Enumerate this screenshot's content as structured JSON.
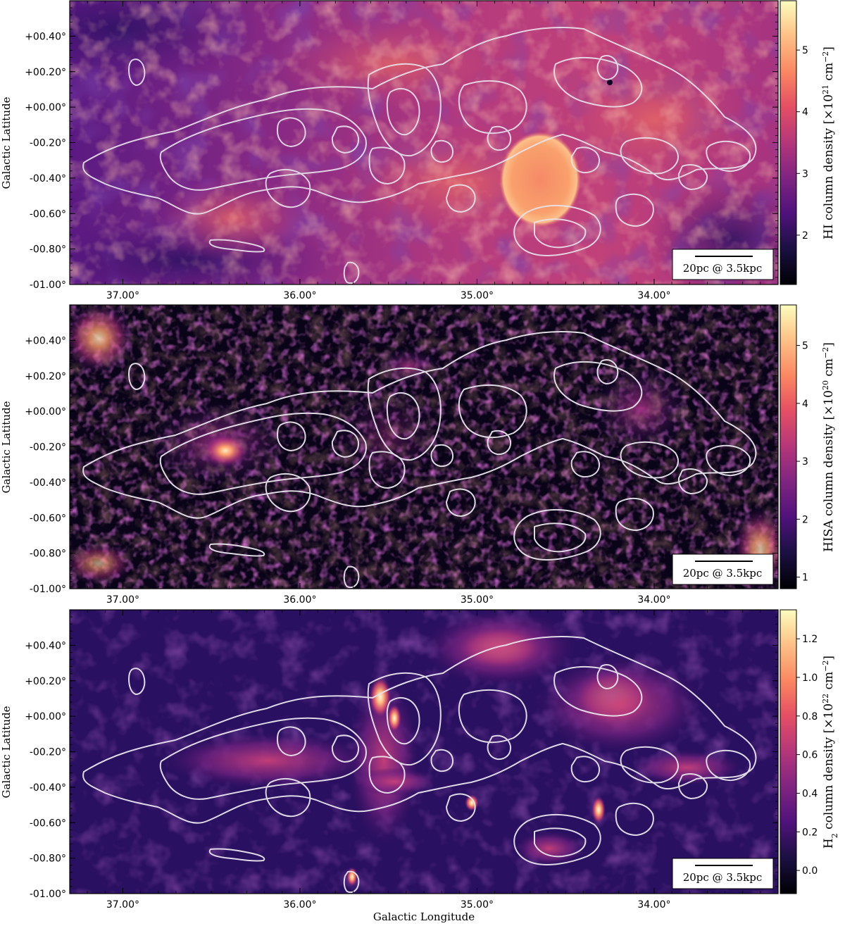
{
  "chart_data": [
    {
      "type": "heatmap",
      "title": "",
      "xlabel": "",
      "ylabel": "Galactic Latitude",
      "xlim": [
        37.3,
        33.3
      ],
      "ylim": [
        -1.0,
        0.6
      ],
      "x_ticks": [
        "37.00°",
        "36.00°",
        "35.00°",
        "34.00°"
      ],
      "x_tick_values": [
        37.0,
        36.0,
        35.0,
        34.0
      ],
      "y_ticks": [
        "+00.40°",
        "+00.20°",
        "+00.00°",
        "-00.20°",
        "-00.40°",
        "-00.60°",
        "-00.80°",
        "-01.00°"
      ],
      "y_tick_values": [
        0.4,
        0.2,
        0.0,
        -0.2,
        -0.4,
        -0.6,
        -0.8,
        -1.0
      ],
      "colorbar": {
        "label_prefix": "HI column density [×10",
        "label_exp": "21",
        "label_suffix": " cm",
        "label_unit_exp": "−2",
        "label_close": "]",
        "ticks": [
          "2",
          "3",
          "4",
          "5"
        ],
        "tick_values": [
          2,
          3,
          4,
          5
        ],
        "range": [
          1.2,
          5.8
        ],
        "colormap": "magma"
      },
      "scalebar": "20pc @ 3.5kpc",
      "grid": false
    },
    {
      "type": "heatmap",
      "title": "",
      "xlabel": "",
      "ylabel": "Galactic Latitude",
      "xlim": [
        37.3,
        33.3
      ],
      "ylim": [
        -1.0,
        0.6
      ],
      "x_ticks": [
        "37.00°",
        "36.00°",
        "35.00°",
        "34.00°"
      ],
      "x_tick_values": [
        37.0,
        36.0,
        35.0,
        34.0
      ],
      "y_ticks": [
        "+00.40°",
        "+00.20°",
        "+00.00°",
        "-00.20°",
        "-00.40°",
        "-00.60°",
        "-00.80°",
        "-01.00°"
      ],
      "y_tick_values": [
        0.4,
        0.2,
        0.0,
        -0.2,
        -0.4,
        -0.6,
        -0.8,
        -1.0
      ],
      "colorbar": {
        "label_prefix": "HISA column density [×10",
        "label_exp": "20",
        "label_suffix": " cm",
        "label_unit_exp": "−2",
        "label_close": "]",
        "ticks": [
          "1",
          "2",
          "3",
          "4",
          "5"
        ],
        "tick_values": [
          1,
          2,
          3,
          4,
          5
        ],
        "range": [
          0.8,
          5.7
        ],
        "colormap": "magma"
      },
      "scalebar": "20pc @ 3.5kpc",
      "grid": false
    },
    {
      "type": "heatmap",
      "title": "",
      "xlabel": "Galactic Longitude",
      "ylabel": "Galactic Latitude",
      "xlim": [
        37.3,
        33.3
      ],
      "ylim": [
        -1.0,
        0.6
      ],
      "x_ticks": [
        "37.00°",
        "36.00°",
        "35.00°",
        "34.00°"
      ],
      "x_tick_values": [
        37.0,
        36.0,
        35.0,
        34.0
      ],
      "y_ticks": [
        "+00.40°",
        "+00.20°",
        "+00.00°",
        "-00.20°",
        "-00.40°",
        "-00.60°",
        "-00.80°",
        "-01.00°"
      ],
      "y_tick_values": [
        0.4,
        0.2,
        0.0,
        -0.2,
        -0.4,
        -0.6,
        -0.8,
        -1.0
      ],
      "colorbar": {
        "label_prefix": "H",
        "label_sub": "2",
        "label_mid": " column density [×10",
        "label_exp": "22",
        "label_suffix": " cm",
        "label_unit_exp": "−2",
        "label_close": "]",
        "ticks": [
          "0.0",
          "0.2",
          "0.4",
          "0.6",
          "0.8",
          "1.0",
          "1.2"
        ],
        "tick_values": [
          0.0,
          0.2,
          0.4,
          0.6,
          0.8,
          1.0,
          1.2
        ],
        "range": [
          -0.12,
          1.35
        ],
        "colormap": "magma"
      },
      "scalebar": "20pc @ 3.5kpc",
      "grid": false
    }
  ]
}
